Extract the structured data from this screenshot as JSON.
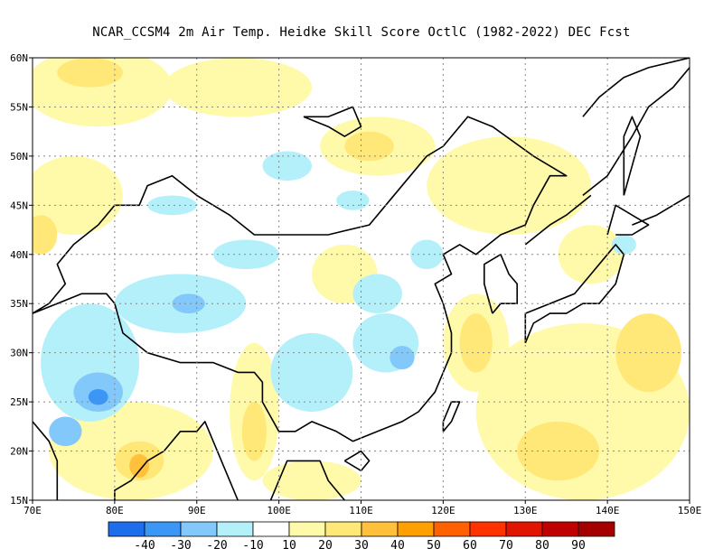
{
  "title": "NCAR_CCSM4  2m Air Temp. Heidke Skill Score OctlC (1982-2022) DEC Fcst",
  "chart_data": {
    "type": "heatmap",
    "x_range": [
      70,
      150
    ],
    "y_range": [
      15,
      60
    ],
    "x_ticks": [
      70,
      80,
      90,
      100,
      110,
      120,
      130,
      140,
      150
    ],
    "x_tick_labels": [
      "70E",
      "80E",
      "90E",
      "100E",
      "110E",
      "120E",
      "130E",
      "140E",
      "150E"
    ],
    "y_ticks": [
      15,
      20,
      25,
      30,
      35,
      40,
      45,
      50,
      55,
      60
    ],
    "y_tick_labels": [
      "15N",
      "20N",
      "25N",
      "30N",
      "35N",
      "40N",
      "45N",
      "50N",
      "55N",
      "60N"
    ],
    "grid": true,
    "colorbar": {
      "colors": [
        "#1e6eeb",
        "#3c96f5",
        "#82c8fa",
        "#b4f0fa",
        "#ffffff",
        "#fffaaa",
        "#ffe878",
        "#ffc03c",
        "#ffa000",
        "#ff6000",
        "#ff3200",
        "#e11400",
        "#c00000",
        "#a50000"
      ],
      "labels": [
        "-40",
        "-30",
        "-20",
        "-10",
        "10",
        "20",
        "30",
        "40",
        "50",
        "60",
        "70",
        "80",
        "90"
      ]
    },
    "regions": [
      {
        "level": 20,
        "lon": 78,
        "lat": 57,
        "rx": 9,
        "ry": 4
      },
      {
        "level": 20,
        "lon": 95,
        "lat": 57,
        "rx": 9,
        "ry": 3
      },
      {
        "level": 30,
        "lon": 77,
        "lat": 58.5,
        "rx": 4,
        "ry": 1.5
      },
      {
        "level": 20,
        "lon": 112,
        "lat": 51,
        "rx": 7,
        "ry": 3
      },
      {
        "level": 30,
        "lon": 111,
        "lat": 51,
        "rx": 3,
        "ry": 1.5
      },
      {
        "level": 20,
        "lon": 75,
        "lat": 46,
        "rx": 6,
        "ry": 4
      },
      {
        "level": 30,
        "lon": 71,
        "lat": 42,
        "rx": 2,
        "ry": 2
      },
      {
        "level": 20,
        "lon": 128,
        "lat": 47,
        "rx": 10,
        "ry": 5
      },
      {
        "level": 20,
        "lon": 138,
        "lat": 40,
        "rx": 4,
        "ry": 3
      },
      {
        "level": 20,
        "lon": 124,
        "lat": 31,
        "rx": 4,
        "ry": 5
      },
      {
        "level": 30,
        "lon": 124,
        "lat": 31,
        "rx": 2,
        "ry": 3
      },
      {
        "level": 20,
        "lon": 137,
        "lat": 24,
        "rx": 13,
        "ry": 9
      },
      {
        "level": 30,
        "lon": 145,
        "lat": 30,
        "rx": 4,
        "ry": 4
      },
      {
        "level": 30,
        "lon": 134,
        "lat": 20,
        "rx": 5,
        "ry": 3
      },
      {
        "level": 20,
        "lon": 82,
        "lat": 20,
        "rx": 10,
        "ry": 5
      },
      {
        "level": 30,
        "lon": 83,
        "lat": 19,
        "rx": 3,
        "ry": 2
      },
      {
        "level": 40,
        "lon": 83,
        "lat": 18.5,
        "rx": 1.2,
        "ry": 1.2
      },
      {
        "level": 20,
        "lon": 97,
        "lat": 24,
        "rx": 3,
        "ry": 7
      },
      {
        "level": 30,
        "lon": 97,
        "lat": 22,
        "rx": 1.5,
        "ry": 3
      },
      {
        "level": 20,
        "lon": 104,
        "lat": 17,
        "rx": 6,
        "ry": 2
      },
      {
        "level": 20,
        "lon": 108,
        "lat": 38,
        "rx": 4,
        "ry": 3
      },
      {
        "level": -10,
        "lon": 77,
        "lat": 29,
        "rx": 6,
        "ry": 6
      },
      {
        "level": -20,
        "lon": 78,
        "lat": 26,
        "rx": 3,
        "ry": 2
      },
      {
        "level": -30,
        "lon": 78,
        "lat": 25.5,
        "rx": 1.2,
        "ry": 0.8
      },
      {
        "level": -20,
        "lon": 74,
        "lat": 22,
        "rx": 2,
        "ry": 1.5
      },
      {
        "level": -10,
        "lon": 88,
        "lat": 35,
        "rx": 8,
        "ry": 3
      },
      {
        "level": -20,
        "lon": 89,
        "lat": 35,
        "rx": 2,
        "ry": 1
      },
      {
        "level": -10,
        "lon": 104,
        "lat": 28,
        "rx": 5,
        "ry": 4
      },
      {
        "level": -10,
        "lon": 113,
        "lat": 31,
        "rx": 4,
        "ry": 3
      },
      {
        "level": -20,
        "lon": 115,
        "lat": 29.5,
        "rx": 1.5,
        "ry": 1.2
      },
      {
        "level": -10,
        "lon": 96,
        "lat": 40,
        "rx": 4,
        "ry": 1.5
      },
      {
        "level": -10,
        "lon": 112,
        "lat": 36,
        "rx": 3,
        "ry": 2
      },
      {
        "level": -10,
        "lon": 87,
        "lat": 45,
        "rx": 3,
        "ry": 1
      },
      {
        "level": -10,
        "lon": 101,
        "lat": 49,
        "rx": 3,
        "ry": 1.5
      },
      {
        "level": -10,
        "lon": 109,
        "lat": 45.5,
        "rx": 2,
        "ry": 1
      },
      {
        "level": -10,
        "lon": 118,
        "lat": 40,
        "rx": 2,
        "ry": 1.5
      },
      {
        "level": -10,
        "lon": 142,
        "lat": 41,
        "rx": 1.5,
        "ry": 1
      }
    ],
    "coastlines": [
      [
        [
          70,
          34
        ],
        [
          73,
          35
        ],
        [
          76,
          36
        ],
        [
          79,
          36
        ],
        [
          80,
          35
        ],
        [
          81,
          32
        ],
        [
          84,
          30
        ],
        [
          88,
          29
        ],
        [
          92,
          29
        ],
        [
          95,
          28
        ],
        [
          97,
          28
        ],
        [
          98,
          27
        ],
        [
          98,
          25
        ],
        [
          100,
          22
        ],
        [
          102,
          22
        ],
        [
          104,
          23
        ],
        [
          107,
          22
        ],
        [
          109,
          21
        ],
        [
          112,
          22
        ],
        [
          115,
          23
        ],
        [
          117,
          24
        ],
        [
          119,
          26
        ],
        [
          120,
          28
        ],
        [
          121,
          30
        ],
        [
          121,
          32
        ],
        [
          120,
          35
        ],
        [
          119,
          37
        ],
        [
          121,
          38
        ],
        [
          120,
          40
        ],
        [
          122,
          41
        ],
        [
          124,
          40
        ],
        [
          127,
          42
        ],
        [
          130,
          43
        ],
        [
          131,
          45
        ],
        [
          133,
          48
        ],
        [
          135,
          48
        ],
        [
          131,
          50
        ],
        [
          126,
          53
        ],
        [
          123,
          54
        ],
        [
          120,
          51
        ],
        [
          118,
          50
        ],
        [
          116,
          48
        ],
        [
          113,
          45
        ],
        [
          111,
          43
        ],
        [
          106,
          42
        ],
        [
          97,
          42
        ],
        [
          94,
          44
        ],
        [
          90,
          46
        ],
        [
          87,
          48
        ],
        [
          84,
          47
        ],
        [
          83,
          45
        ],
        [
          80,
          45
        ],
        [
          78,
          43
        ],
        [
          75,
          41
        ],
        [
          73,
          39
        ],
        [
          74,
          37
        ],
        [
          72,
          35
        ],
        [
          70,
          34
        ]
      ],
      [
        [
          70,
          23
        ],
        [
          72,
          21
        ],
        [
          73,
          19
        ],
        [
          73,
          17
        ],
        [
          73,
          15
        ]
      ],
      [
        [
          80,
          15
        ],
        [
          80,
          16
        ],
        [
          82,
          17
        ],
        [
          84,
          19
        ],
        [
          86,
          20
        ],
        [
          87,
          21
        ],
        [
          88,
          22
        ],
        [
          90,
          22
        ],
        [
          91,
          23
        ],
        [
          92,
          21
        ],
        [
          93,
          19
        ],
        [
          94,
          17
        ],
        [
          95,
          15
        ]
      ],
      [
        [
          99,
          15
        ],
        [
          100,
          17
        ],
        [
          101,
          19
        ],
        [
          105,
          19
        ],
        [
          106,
          17
        ],
        [
          107,
          16
        ],
        [
          108,
          15
        ]
      ],
      [
        [
          126,
          34
        ],
        [
          127,
          35
        ],
        [
          129,
          35
        ],
        [
          129,
          37
        ],
        [
          128,
          38
        ],
        [
          127,
          40
        ],
        [
          125,
          39
        ],
        [
          125,
          37
        ],
        [
          126,
          34
        ]
      ],
      [
        [
          130,
          31
        ],
        [
          131,
          33
        ],
        [
          133,
          34
        ],
        [
          135,
          34
        ],
        [
          137,
          35
        ],
        [
          139,
          35
        ],
        [
          141,
          37
        ],
        [
          142,
          40
        ],
        [
          141,
          41
        ],
        [
          140,
          40
        ],
        [
          138,
          38
        ],
        [
          136,
          36
        ],
        [
          133,
          35
        ],
        [
          130,
          34
        ],
        [
          130,
          31
        ]
      ],
      [
        [
          140,
          42
        ],
        [
          141,
          45
        ],
        [
          143,
          44
        ],
        [
          145,
          43
        ],
        [
          143,
          42
        ],
        [
          141,
          42
        ]
      ],
      [
        [
          142,
          46
        ],
        [
          143,
          49
        ],
        [
          144,
          52
        ],
        [
          143,
          54
        ],
        [
          142,
          52
        ],
        [
          142,
          46
        ]
      ],
      [
        [
          120,
          22
        ],
        [
          121,
          23
        ],
        [
          122,
          25
        ],
        [
          121,
          25
        ],
        [
          120,
          23
        ],
        [
          120,
          22
        ]
      ],
      [
        [
          108,
          19
        ],
        [
          110,
          20
        ],
        [
          111,
          19
        ],
        [
          110,
          18
        ],
        [
          108,
          19
        ]
      ],
      [
        [
          103,
          54
        ],
        [
          106,
          53
        ],
        [
          108,
          52
        ],
        [
          110,
          53
        ],
        [
          109,
          55
        ],
        [
          106,
          54
        ],
        [
          103,
          54
        ]
      ],
      [
        [
          137,
          54
        ],
        [
          139,
          56
        ],
        [
          142,
          58
        ],
        [
          145,
          59
        ],
        [
          150,
          60
        ]
      ],
      [
        [
          137,
          46
        ],
        [
          140,
          48
        ],
        [
          143,
          52
        ],
        [
          145,
          55
        ],
        [
          148,
          57
        ],
        [
          150,
          59
        ]
      ],
      [
        [
          130,
          41
        ],
        [
          133,
          43
        ],
        [
          135,
          44
        ],
        [
          138,
          46
        ]
      ],
      [
        [
          143,
          43
        ],
        [
          146,
          44
        ],
        [
          150,
          46
        ]
      ]
    ]
  }
}
